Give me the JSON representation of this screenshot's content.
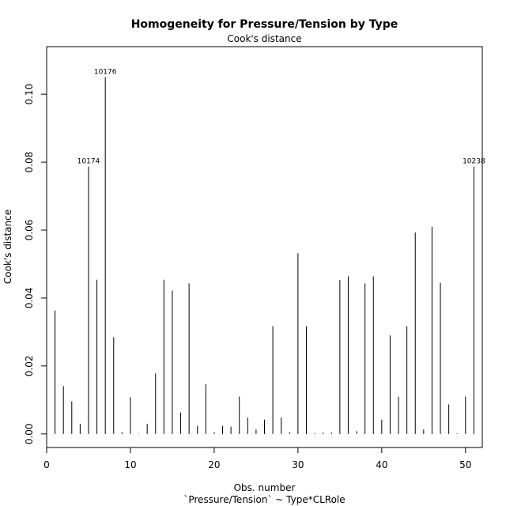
{
  "chart_data": {
    "type": "bar",
    "title": "Homogeneity for Pressure/Tension by Type",
    "subtitle": "Cook's distance",
    "xlabel": "Obs. number",
    "xlabel2": "`Pressure/Tension` ~ Type*CLRole",
    "ylabel": "Cook's distance",
    "xlim": [
      0,
      52
    ],
    "ylim": [
      -0.004,
      0.114
    ],
    "xticks": [
      0,
      10,
      20,
      30,
      40,
      50
    ],
    "yticks": [
      0.0,
      0.02,
      0.04,
      0.06,
      0.08,
      0.1
    ],
    "ytick_labels": [
      "0.00",
      "0.02",
      "0.04",
      "0.06",
      "0.08",
      "0.10"
    ],
    "x": [
      1,
      2,
      3,
      4,
      5,
      6,
      7,
      8,
      9,
      10,
      11,
      12,
      13,
      14,
      15,
      16,
      17,
      18,
      19,
      20,
      21,
      22,
      23,
      24,
      25,
      26,
      27,
      28,
      29,
      30,
      31,
      32,
      33,
      34,
      35,
      36,
      37,
      38,
      39,
      40,
      41,
      42,
      43,
      44,
      45,
      46,
      47,
      48,
      49,
      50,
      51
    ],
    "values": [
      0.0363,
      0.0141,
      0.0096,
      0.003,
      0.0787,
      0.0454,
      0.105,
      0.0285,
      0.0005,
      0.0108,
      0.0001,
      0.003,
      0.0178,
      0.0454,
      0.0422,
      0.0063,
      0.0443,
      0.0024,
      0.0146,
      0.0005,
      0.0024,
      0.0021,
      0.011,
      0.0048,
      0.0013,
      0.0042,
      0.0317,
      0.0048,
      0.0005,
      0.0532,
      0.0317,
      0.0002,
      0.0004,
      0.0004,
      0.0453,
      0.0464,
      0.0008,
      0.0443,
      0.0464,
      0.0042,
      0.029,
      0.011,
      0.0317,
      0.0593,
      0.0013,
      0.061,
      0.0445,
      0.0087,
      0.0002,
      0.011,
      0.0787
    ],
    "annotations": [
      {
        "x": 5,
        "y": 0.0787,
        "text": "10174"
      },
      {
        "x": 7,
        "y": 0.105,
        "text": "10176"
      },
      {
        "x": 51,
        "y": 0.0787,
        "text": "10238"
      }
    ]
  }
}
